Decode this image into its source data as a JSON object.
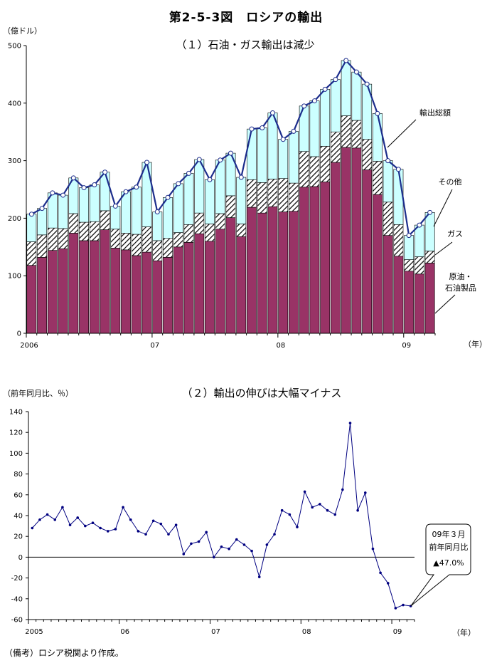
{
  "title": "第2-5-3図　ロシアの輸出",
  "note": "（備考）ロシア税関より作成。",
  "chart_data": [
    {
      "type": "bar",
      "title": "（１）石油・ガス輸出は減少",
      "unit_label": "（億ドル）",
      "x_unit_label": "（年）",
      "stacked": true,
      "ylim": [
        0,
        500
      ],
      "yticks": [
        0,
        100,
        200,
        300,
        400,
        500
      ],
      "x_tick_labels": [
        {
          "label": "2006",
          "index": 0
        },
        {
          "label": "07",
          "index": 12
        },
        {
          "label": "08",
          "index": 24
        },
        {
          "label": "09",
          "index": 36
        }
      ],
      "categories": [
        "2006-01",
        "2006-02",
        "2006-03",
        "2006-04",
        "2006-05",
        "2006-06",
        "2006-07",
        "2006-08",
        "2006-09",
        "2006-10",
        "2006-11",
        "2006-12",
        "2007-01",
        "2007-02",
        "2007-03",
        "2007-04",
        "2007-05",
        "2007-06",
        "2007-07",
        "2007-08",
        "2007-09",
        "2007-10",
        "2007-11",
        "2007-12",
        "2008-01",
        "2008-02",
        "2008-03",
        "2008-04",
        "2008-05",
        "2008-06",
        "2008-07",
        "2008-08",
        "2008-09",
        "2008-10",
        "2008-11",
        "2008-12",
        "2009-01",
        "2009-02",
        "2009-03"
      ],
      "series": [
        {
          "name": "原油・石油製品",
          "color": "#993366",
          "pattern": "solid",
          "values": [
            118,
            132,
            144,
            147,
            174,
            161,
            161,
            180,
            148,
            145,
            135,
            141,
            126,
            132,
            150,
            158,
            173,
            160,
            181,
            201,
            168,
            219,
            209,
            220,
            211,
            212,
            254,
            255,
            263,
            297,
            323,
            322,
            284,
            241,
            170,
            134,
            108,
            103,
            122
          ]
        },
        {
          "name": "ガス",
          "color": "#000000",
          "pattern": "hatch",
          "values": [
            41,
            39,
            39,
            35,
            34,
            32,
            33,
            33,
            33,
            29,
            37,
            44,
            35,
            33,
            25,
            31,
            36,
            30,
            27,
            38,
            22,
            48,
            53,
            48,
            58,
            49,
            62,
            52,
            62,
            53,
            55,
            48,
            53,
            58,
            58,
            55,
            20,
            30,
            21
          ]
        },
        {
          "name": "その他",
          "color": "#ccffff",
          "pattern": "solid",
          "values": [
            48,
            46,
            61,
            58,
            62,
            60,
            64,
            67,
            40,
            72,
            82,
            112,
            50,
            71,
            85,
            89,
            93,
            77,
            93,
            74,
            81,
            88,
            95,
            115,
            68,
            90,
            79,
            97,
            99,
            91,
            96,
            84,
            96,
            83,
            72,
            96,
            42,
            55,
            67
          ]
        }
      ],
      "line_series": {
        "name": "輸出総額",
        "values": [
          207,
          217,
          244,
          240,
          270,
          253,
          258,
          280,
          221,
          246,
          254,
          297,
          211,
          236,
          260,
          278,
          302,
          267,
          301,
          313,
          271,
          355,
          357,
          383,
          337,
          351,
          395,
          404,
          424,
          441,
          474,
          454,
          433,
          382,
          300,
          285,
          170,
          188,
          210
        ]
      },
      "labels": [
        "輸出総額",
        "その他",
        "ガス",
        "原油・石油製品"
      ]
    },
    {
      "type": "line",
      "title": "（２）輸出の伸びは大幅マイナス",
      "unit_label": "（前年同月比、％）",
      "x_unit_label": "（年）",
      "ylim": [
        -60,
        140
      ],
      "yticks": [
        -60,
        -40,
        -20,
        0,
        20,
        40,
        60,
        80,
        100,
        120,
        140
      ],
      "x_tick_labels": [
        {
          "label": "2005",
          "index": 0
        },
        {
          "label": "06",
          "index": 12
        },
        {
          "label": "07",
          "index": 24
        },
        {
          "label": "08",
          "index": 36
        },
        {
          "label": "09",
          "index": 48
        }
      ],
      "categories": [
        "2005-01",
        "2005-02",
        "2005-03",
        "2005-04",
        "2005-05",
        "2005-06",
        "2005-07",
        "2005-08",
        "2005-09",
        "2005-10",
        "2005-11",
        "2005-12",
        "2006-01",
        "2006-02",
        "2006-03",
        "2006-04",
        "2006-05",
        "2006-06",
        "2006-07",
        "2006-08",
        "2006-09",
        "2006-10",
        "2006-11",
        "2006-12",
        "2007-01",
        "2007-02",
        "2007-03",
        "2007-04",
        "2007-05",
        "2007-06",
        "2007-07",
        "2007-08",
        "2007-09",
        "2007-10",
        "2007-11",
        "2007-12",
        "2008-01",
        "2008-02",
        "2008-03",
        "2008-04",
        "2008-05",
        "2008-06",
        "2008-07",
        "2008-08",
        "2008-09",
        "2008-10",
        "2008-11",
        "2008-12",
        "2009-01",
        "2009-02",
        "2009-03"
      ],
      "series": [
        {
          "name": "",
          "color": "#000080",
          "values": [
            28,
            36,
            41,
            36,
            48,
            31,
            38,
            30,
            33,
            28,
            25,
            27,
            48,
            36,
            25,
            22,
            35,
            32,
            22,
            31,
            3,
            13,
            15,
            24,
            0,
            10,
            8,
            17,
            12,
            6,
            -19,
            12,
            22,
            45,
            41,
            29,
            63,
            48,
            51,
            45,
            41,
            65,
            129,
            45,
            62,
            8,
            -15,
            -25,
            -49,
            -46,
            -47
          ]
        }
      ],
      "callout": {
        "line1": "09年３月",
        "line2": "前年同月比",
        "line3": "▲47.0%"
      }
    }
  ]
}
